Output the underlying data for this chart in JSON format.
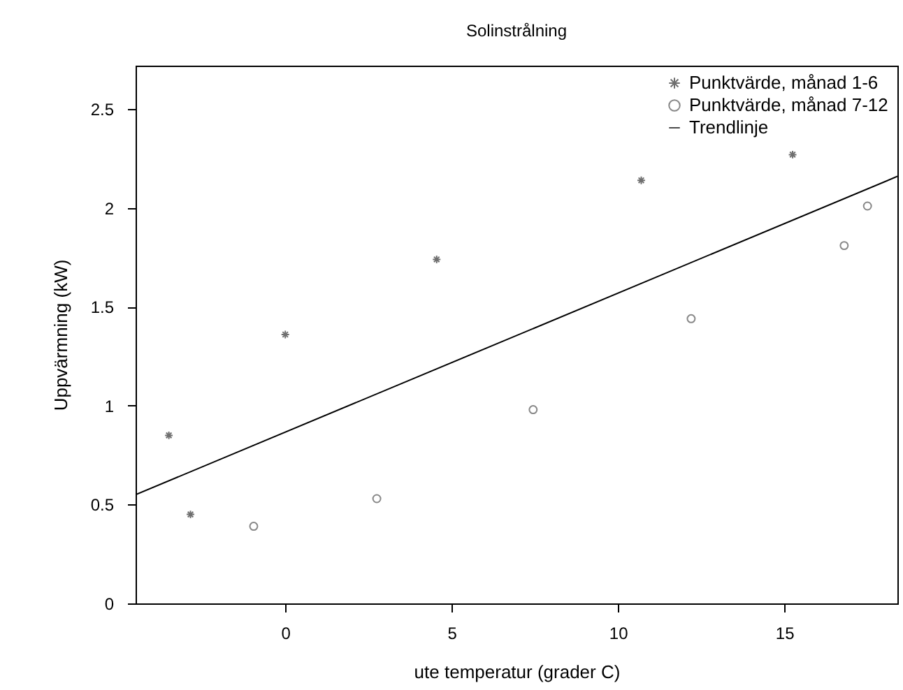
{
  "chart_data": {
    "type": "scatter",
    "title": "Solinstrålning",
    "xlabel": "ute temperatur (grader C)",
    "ylabel": "Uppvärmning (kW)",
    "xlim": [
      -4.5,
      18.4
    ],
    "ylim": [
      0,
      2.72
    ],
    "xticks": [
      0,
      5,
      10,
      15
    ],
    "yticks": [
      0,
      0.5,
      1,
      1.5,
      2,
      2.5
    ],
    "grid": false,
    "legend": "top right",
    "series": [
      {
        "name": "Punktvärde, månad 1-6",
        "type": "scatter",
        "marker": "cross",
        "color": "#333333",
        "x": [
          -3.5,
          -2.85,
          0,
          4.55,
          10.7,
          15.25
        ],
        "values": [
          0.85,
          0.45,
          1.36,
          1.74,
          2.14,
          2.27
        ]
      },
      {
        "name": "Punktvärde, månad 7-12",
        "type": "scatter",
        "marker": "circle",
        "color": "#555555",
        "x": [
          -0.95,
          2.75,
          7.45,
          12.2,
          16.8,
          17.5
        ],
        "values": [
          0.39,
          0.53,
          0.98,
          1.44,
          1.81,
          2.01
        ]
      },
      {
        "name": "Trendlinje",
        "type": "line",
        "line_style": "solid",
        "color": "#000000",
        "x": [
          -4.5,
          18.4
        ],
        "values": [
          0.55,
          2.16
        ]
      }
    ]
  }
}
